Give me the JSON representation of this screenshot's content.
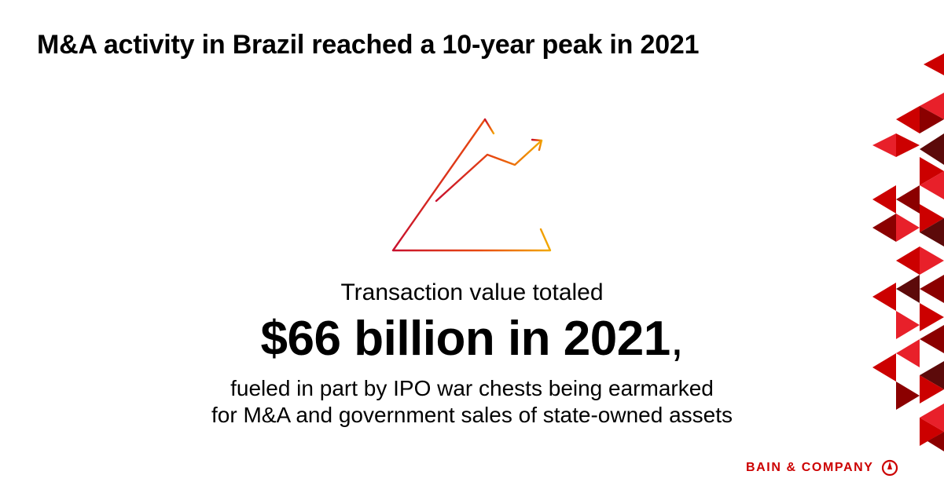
{
  "title": "M&A activity in Brazil reached a 10-year peak in 2021",
  "icon": "growth-chart-triangle-icon",
  "lead": "Transaction value totaled",
  "headline": "$66 billion in 2021",
  "headline_comma": ",",
  "body_lines": [
    "fueled in part by IPO war chests being earmarked",
    "for M&A and government sales of state-owned assets"
  ],
  "brand": {
    "name": "BAIN & COMPANY",
    "logo_icon": "bain-compass-logo-icon"
  },
  "colors": {
    "brand_red": "#cc0000",
    "icon_gradient_start": "#c8102e",
    "icon_gradient_end": "#f2a900",
    "pattern_reds": [
      "#cc0000",
      "#8b0000",
      "#e8202a",
      "#5c0a0a"
    ]
  }
}
